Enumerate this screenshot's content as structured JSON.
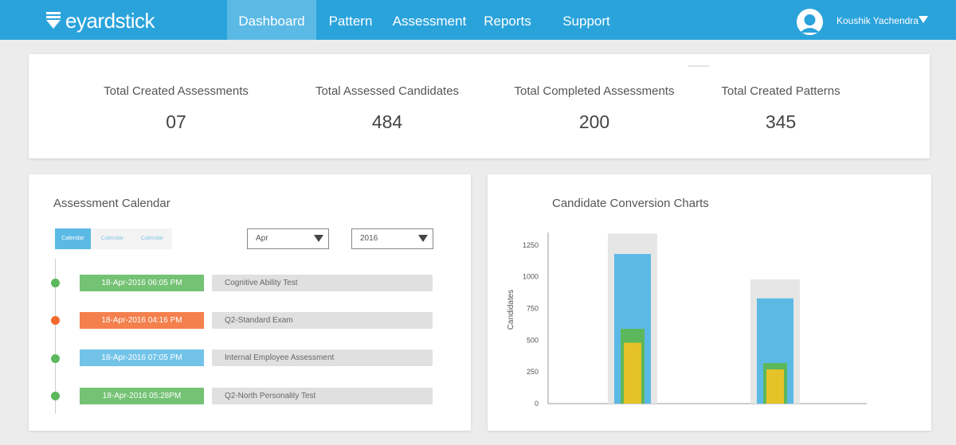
{
  "brand": {
    "name": "eyardstick"
  },
  "nav": {
    "items": [
      {
        "label": "Dashboard",
        "active": true
      },
      {
        "label": "Pattern",
        "active": false
      },
      {
        "label": "Assessment",
        "active": false
      },
      {
        "label": "Reports",
        "active": false
      },
      {
        "label": "Support",
        "active": false
      }
    ]
  },
  "user": {
    "name": "Koushik Yachendra"
  },
  "stats": [
    {
      "label": "Total Created Assessments",
      "value": "07"
    },
    {
      "label": "Total Assessed Candidates",
      "value": "484"
    },
    {
      "label": "Total Completed Assessments",
      "value": "200"
    },
    {
      "label": "Total Created Patterns",
      "value": "345"
    }
  ],
  "calendar": {
    "title": "Assessment Calendar",
    "tabs": [
      "Calendar",
      "Calendar",
      "Calendar"
    ],
    "month": "Apr",
    "year": "2016",
    "events": [
      {
        "date": "18-Apr-2016 06:05 PM",
        "name": "Cognitive Ability Test",
        "color": "#5cb85c"
      },
      {
        "date": "18-Apr-2016 04:16 PM",
        "name": "Q2-Standard Exam",
        "color": "#f26a2e"
      },
      {
        "date": "18-Apr-2016 07:05 PM",
        "name": "Internal Employee Assessment",
        "color": "#5bb9e6"
      },
      {
        "date": "18-Apr-2016 05:28PM",
        "name": "Q2-North Personality Test",
        "color": "#5cb85c"
      }
    ]
  },
  "conversion": {
    "title": "Candidate Conversion Charts"
  },
  "chart_data": {
    "type": "bar",
    "ylabel": "Candidates",
    "yticks": [
      0,
      250,
      500,
      750,
      1000,
      1250
    ],
    "ylim": [
      0,
      1350
    ],
    "categories": [
      "",
      ""
    ],
    "series": [
      {
        "values": [
          1340,
          980
        ],
        "color": "#e6e6e6"
      },
      {
        "values": [
          1180,
          830
        ],
        "color": "#5bb9e6"
      },
      {
        "values": [
          590,
          320
        ],
        "color": "#5cb85c"
      },
      {
        "values": [
          480,
          270
        ],
        "color": "#e6c229"
      }
    ]
  },
  "colors": {
    "accent": "#2aa3db",
    "nav_active": "#5bb9e6",
    "background": "#ececec"
  }
}
